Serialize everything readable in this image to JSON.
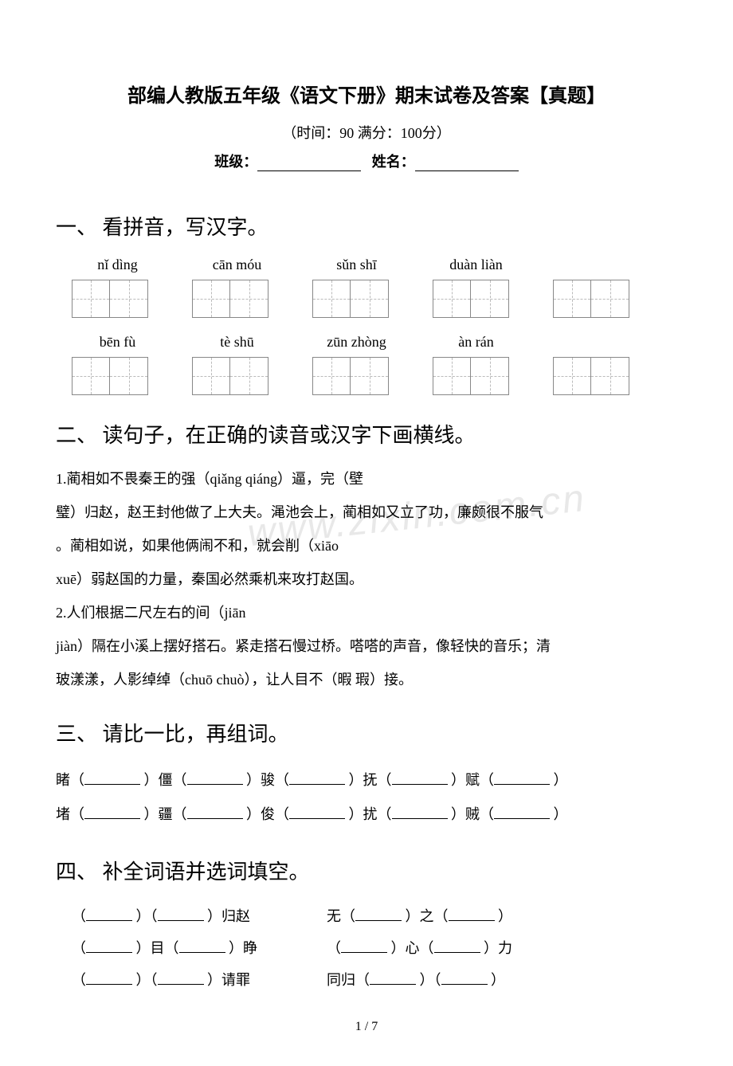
{
  "title": "部编人教版五年级《语文下册》期末试卷及答案【真题】",
  "meta": {
    "time_score": "（时间：90   满分：100分）",
    "class_label": "班级：",
    "name_label": "姓名："
  },
  "section1": {
    "heading": "一、 看拼音，写汉字。",
    "row1_pinyin": [
      "nǐ dìng",
      "cān móu",
      "sǔn shī",
      "duàn liàn"
    ],
    "row2_pinyin": [
      "bēn fù",
      "tè shū",
      "zūn zhòng",
      "àn rán"
    ]
  },
  "section2": {
    "heading": "二、 读句子，在正确的读音或汉字下画横线。",
    "line1": "1.蔺相如不畏秦王的强（qiǎng qiáng）逼，完（壁",
    "line2": "璧）归赵，赵王封他做了上大夫。渑池会上，蔺相如又立了功，廉颇很不服气",
    "line3": "。蔺相如说，如果他俩闹不和，就会削（xiāo",
    "line4": "xuē）弱赵国的力量，秦国必然乘机来攻打赵国。",
    "line5": "2.人们根据二尺左右的间（jiān",
    "line6": "jiàn）隔在小溪上摆好搭石。紧走搭石慢过桥。嗒嗒的声音，像轻快的音乐；清",
    "line7": "玻漾漾，人影绰绰（chuō chuò），让人目不（暇 瑕）接。"
  },
  "section3": {
    "heading": "三、 请比一比，再组词。",
    "row1": [
      "睹（",
      "）僵（",
      "）骏（",
      "）抚（",
      "）赋（",
      "）"
    ],
    "row2": [
      "堵（",
      "）疆（",
      "）俊（",
      "）扰（",
      "）贼（",
      "）"
    ]
  },
  "section4": {
    "heading": "四、 补全词语并选词填空。",
    "rows": [
      {
        "left_pre": "（",
        "left_mid": "）（",
        "left_post": "）归赵",
        "right_pre": "无（",
        "right_mid": "）之（",
        "right_post": "）"
      },
      {
        "left_pre": "（",
        "left_mid": "）目（",
        "left_post": "）睁",
        "right_pre": "（",
        "right_mid": "）心（",
        "right_post": "）力"
      },
      {
        "left_pre": "（",
        "left_mid": "）（",
        "left_post": "）请罪",
        "right_pre": "同归（",
        "right_mid": "）（",
        "right_post": "）"
      }
    ]
  },
  "watermark": "www.zixin.com.cn",
  "page_num": "1 / 7"
}
